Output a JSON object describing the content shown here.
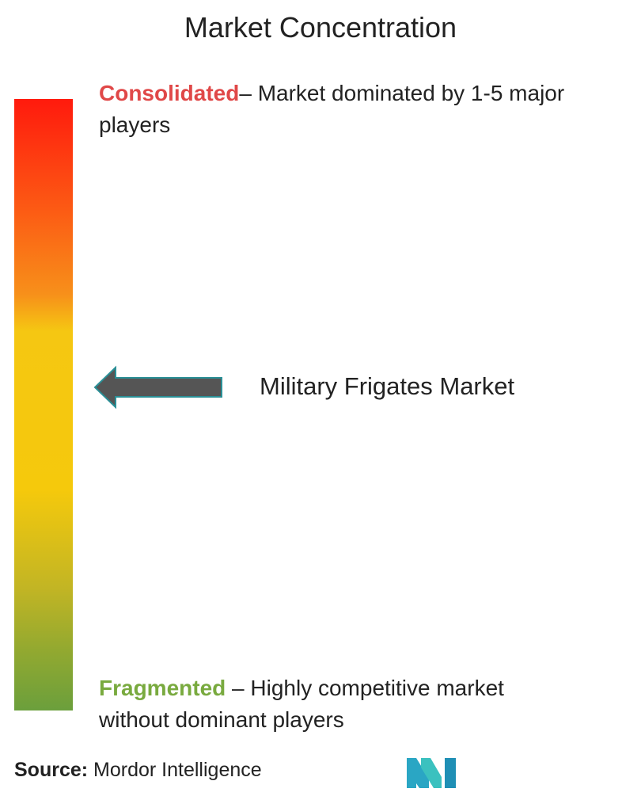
{
  "header": {
    "title": "Market Concentration"
  },
  "scale": {
    "top": {
      "label": "Consolidated",
      "description": "– Market dominated by 1-5 major players"
    },
    "bottom": {
      "label": "Fragmented",
      "description": "– Highly competitive market without dominant players"
    }
  },
  "marker": {
    "label": "Military Frigates Market"
  },
  "footer": {
    "source_label": "Source:",
    "source": "Mordor Intelligence"
  }
}
